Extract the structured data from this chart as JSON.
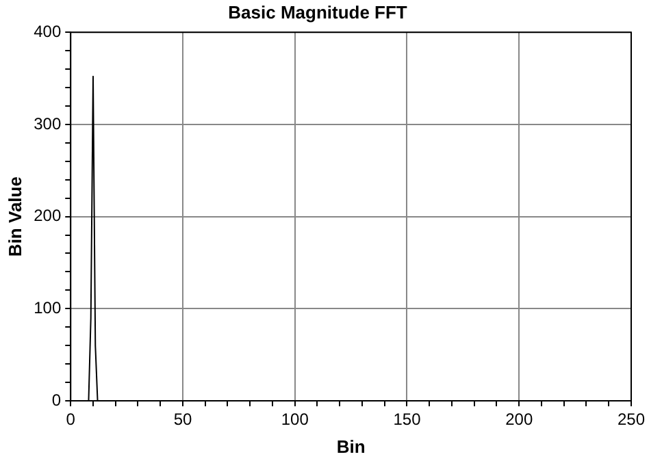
{
  "chart_data": {
    "type": "line",
    "title": "Basic Magnitude FFT",
    "xlabel": "Bin",
    "ylabel": "Bin Value",
    "x": [
      0,
      8,
      9,
      10,
      11,
      12,
      250
    ],
    "series": [
      {
        "color": "#000000",
        "values": [
          0,
          0,
          90,
          352,
          60,
          0,
          0
        ]
      }
    ],
    "xlim": [
      0,
      250
    ],
    "xticks": [
      0,
      {
        "value": 10,
        "label": null
      },
      {
        "value": 20,
        "label": null
      },
      {
        "value": 30,
        "label": null
      },
      {
        "value": 40,
        "label": null
      },
      50,
      {
        "value": 60,
        "label": null
      },
      {
        "value": 70,
        "label": null
      },
      {
        "value": 80,
        "label": null
      },
      {
        "value": 90,
        "label": null
      },
      100,
      {
        "value": 110,
        "label": null
      },
      {
        "value": 120,
        "label": null
      },
      {
        "value": 130,
        "label": null
      },
      {
        "value": 140,
        "label": null
      },
      150,
      {
        "value": 160,
        "label": null
      },
      {
        "value": 170,
        "label": null
      },
      {
        "value": 180,
        "label": null
      },
      {
        "value": 190,
        "label": null
      },
      200,
      {
        "value": 210,
        "label": null
      },
      {
        "value": 220,
        "label": null
      },
      {
        "value": 230,
        "label": null
      },
      {
        "value": 240,
        "label": null
      },
      250
    ],
    "ylim": [
      0,
      400
    ],
    "yticks": [
      0,
      {
        "value": 20,
        "label": null
      },
      {
        "value": 40,
        "label": null
      },
      {
        "value": 60,
        "label": null
      },
      {
        "value": 80,
        "label": null
      },
      100,
      {
        "value": 120,
        "label": null
      },
      {
        "value": 140,
        "label": null
      },
      {
        "value": 160,
        "label": null
      },
      {
        "value": 180,
        "label": null
      },
      200,
      {
        "value": 220,
        "label": null
      },
      {
        "value": 240,
        "label": null
      },
      {
        "value": 260,
        "label": null
      },
      {
        "value": 280,
        "label": null
      },
      300,
      {
        "value": 320,
        "label": null
      },
      {
        "value": 340,
        "label": null
      },
      {
        "value": 360,
        "label": null
      },
      {
        "value": 380,
        "label": null
      },
      400
    ],
    "grid": true,
    "line_style": "solid",
    "marker": "none"
  }
}
